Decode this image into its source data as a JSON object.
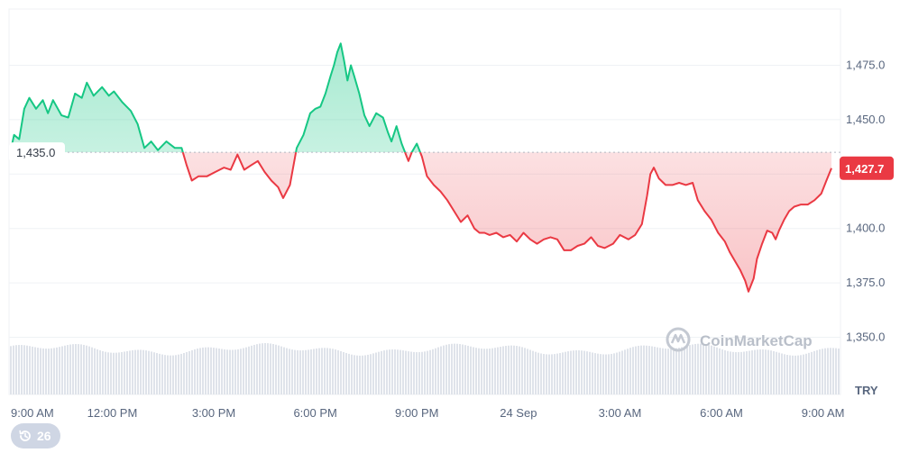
{
  "chart_data": {
    "type": "area",
    "currency": "TRY",
    "watermark": "CoinMarketCap",
    "baseline_value": 1435.0,
    "baseline_label": "1,435.0",
    "last_value": 1427.7,
    "last_label": "1,427.7",
    "ylim": [
      1340,
      1490
    ],
    "y_ticks": [
      {
        "value": 1475,
        "label": "1,475.0"
      },
      {
        "value": 1450,
        "label": "1,450.0"
      },
      {
        "value": 1425,
        "label": ""
      },
      {
        "value": 1400,
        "label": "1,400.0"
      },
      {
        "value": 1375,
        "label": "1,375.0"
      },
      {
        "value": 1350,
        "label": "1,350.0"
      }
    ],
    "x_ticks": [
      {
        "value": 0,
        "label": "9:00 AM"
      },
      {
        "value": 3,
        "label": "12:00 PM"
      },
      {
        "value": 6,
        "label": "3:00 PM"
      },
      {
        "value": 9,
        "label": "6:00 PM"
      },
      {
        "value": 12,
        "label": "9:00 PM"
      },
      {
        "value": 15,
        "label": "24 Sep"
      },
      {
        "value": 18,
        "label": "3:00 AM"
      },
      {
        "value": 21,
        "label": "6:00 AM"
      },
      {
        "value": 24,
        "label": "9:00 AM"
      }
    ],
    "xlim": [
      -0.05,
      24.25
    ],
    "series": [
      {
        "values": [
          [
            0,
            1436
          ],
          [
            0.1,
            1443
          ],
          [
            0.25,
            1441
          ],
          [
            0.4,
            1455
          ],
          [
            0.55,
            1460
          ],
          [
            0.75,
            1455
          ],
          [
            0.95,
            1459
          ],
          [
            1.1,
            1453
          ],
          [
            1.25,
            1459
          ],
          [
            1.5,
            1452
          ],
          [
            1.7,
            1451
          ],
          [
            1.9,
            1462
          ],
          [
            2.1,
            1460
          ],
          [
            2.25,
            1467
          ],
          [
            2.45,
            1461
          ],
          [
            2.7,
            1465
          ],
          [
            2.9,
            1461
          ],
          [
            3.05,
            1463
          ],
          [
            3.3,
            1458
          ],
          [
            3.55,
            1454
          ],
          [
            3.75,
            1448
          ],
          [
            3.95,
            1437
          ],
          [
            4.15,
            1440
          ],
          [
            4.35,
            1436
          ],
          [
            4.6,
            1440
          ],
          [
            4.85,
            1437
          ],
          [
            5.05,
            1437
          ],
          [
            5.2,
            1429
          ],
          [
            5.35,
            1422
          ],
          [
            5.55,
            1424
          ],
          [
            5.8,
            1424
          ],
          [
            6.05,
            1426
          ],
          [
            6.3,
            1428
          ],
          [
            6.5,
            1427
          ],
          [
            6.7,
            1434
          ],
          [
            6.9,
            1427
          ],
          [
            7.1,
            1429
          ],
          [
            7.3,
            1431
          ],
          [
            7.5,
            1426
          ],
          [
            7.7,
            1422
          ],
          [
            7.9,
            1419
          ],
          [
            8.05,
            1414
          ],
          [
            8.25,
            1420
          ],
          [
            8.45,
            1437
          ],
          [
            8.65,
            1443
          ],
          [
            8.85,
            1453
          ],
          [
            9.0,
            1455
          ],
          [
            9.15,
            1456
          ],
          [
            9.3,
            1462
          ],
          [
            9.45,
            1470
          ],
          [
            9.55,
            1475
          ],
          [
            9.65,
            1481
          ],
          [
            9.75,
            1485
          ],
          [
            9.85,
            1477
          ],
          [
            9.95,
            1468
          ],
          [
            10.05,
            1475
          ],
          [
            10.15,
            1470
          ],
          [
            10.3,
            1462
          ],
          [
            10.45,
            1452
          ],
          [
            10.6,
            1447
          ],
          [
            10.8,
            1453
          ],
          [
            11.0,
            1451
          ],
          [
            11.15,
            1444
          ],
          [
            11.25,
            1440
          ],
          [
            11.4,
            1447
          ],
          [
            11.55,
            1439
          ],
          [
            11.75,
            1431
          ],
          [
            11.85,
            1435
          ],
          [
            12.0,
            1439
          ],
          [
            12.15,
            1433
          ],
          [
            12.3,
            1424
          ],
          [
            12.5,
            1420
          ],
          [
            12.7,
            1417
          ],
          [
            12.9,
            1413
          ],
          [
            13.1,
            1408
          ],
          [
            13.3,
            1403
          ],
          [
            13.5,
            1406
          ],
          [
            13.7,
            1400
          ],
          [
            13.85,
            1398
          ],
          [
            14.0,
            1398
          ],
          [
            14.15,
            1397
          ],
          [
            14.35,
            1398
          ],
          [
            14.55,
            1396
          ],
          [
            14.75,
            1397
          ],
          [
            14.95,
            1394
          ],
          [
            15.15,
            1398
          ],
          [
            15.35,
            1395
          ],
          [
            15.55,
            1393
          ],
          [
            15.75,
            1395
          ],
          [
            15.95,
            1396
          ],
          [
            16.15,
            1395
          ],
          [
            16.35,
            1390
          ],
          [
            16.55,
            1390
          ],
          [
            16.75,
            1392
          ],
          [
            16.95,
            1393
          ],
          [
            17.15,
            1396
          ],
          [
            17.35,
            1392
          ],
          [
            17.55,
            1391
          ],
          [
            17.8,
            1393
          ],
          [
            18.0,
            1397
          ],
          [
            18.25,
            1395
          ],
          [
            18.45,
            1397
          ],
          [
            18.65,
            1402
          ],
          [
            18.8,
            1415
          ],
          [
            18.9,
            1425
          ],
          [
            19.0,
            1428
          ],
          [
            19.15,
            1423
          ],
          [
            19.35,
            1420
          ],
          [
            19.55,
            1420
          ],
          [
            19.75,
            1421
          ],
          [
            19.95,
            1420
          ],
          [
            20.15,
            1421
          ],
          [
            20.3,
            1413
          ],
          [
            20.5,
            1408
          ],
          [
            20.7,
            1404
          ],
          [
            20.9,
            1398
          ],
          [
            21.1,
            1394
          ],
          [
            21.25,
            1389
          ],
          [
            21.4,
            1385
          ],
          [
            21.55,
            1381
          ],
          [
            21.7,
            1376
          ],
          [
            21.8,
            1371
          ],
          [
            21.95,
            1377
          ],
          [
            22.05,
            1386
          ],
          [
            22.2,
            1393
          ],
          [
            22.35,
            1399
          ],
          [
            22.5,
            1398
          ],
          [
            22.6,
            1395
          ],
          [
            22.7,
            1399
          ],
          [
            22.85,
            1404
          ],
          [
            23.0,
            1408
          ],
          [
            23.15,
            1410
          ],
          [
            23.35,
            1411
          ],
          [
            23.55,
            1411
          ],
          [
            23.75,
            1413
          ],
          [
            23.95,
            1416
          ],
          [
            24.1,
            1422
          ],
          [
            24.25,
            1427.7
          ]
        ]
      }
    ],
    "colors": {
      "up": "#16c784",
      "down": "#ea3943",
      "up_fill": "#16c784",
      "down_fill": "#ea3943",
      "grid": "#eff2f5",
      "baseline": "#b3b8c3",
      "last_badge": "#ea3943",
      "volume": "#dfe3ea"
    },
    "grid": true,
    "volume_bars": true
  },
  "history": {
    "icon": "history-icon",
    "count": "26"
  }
}
